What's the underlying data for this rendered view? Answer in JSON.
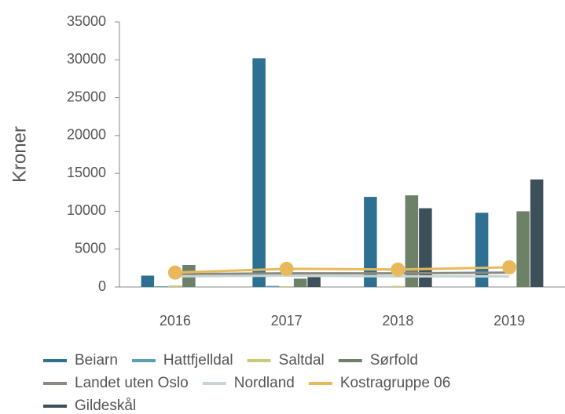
{
  "chart_data": {
    "type": "bar",
    "y_label": "Kroner",
    "categories": [
      "2016",
      "2017",
      "2018",
      "2019"
    ],
    "ylim": [
      0,
      35000
    ],
    "yticks": [
      0,
      5000,
      10000,
      15000,
      20000,
      25000,
      30000,
      35000
    ],
    "series": [
      {
        "name": "Beiarn",
        "type": "bar",
        "color": "#2e7091",
        "values": [
          1500,
          30200,
          11900,
          9800
        ]
      },
      {
        "name": "Hattfjelldal",
        "type": "bar",
        "color": "#5b9fb4",
        "values": [
          100,
          150,
          null,
          null
        ]
      },
      {
        "name": "Saltdal",
        "type": "bar",
        "color": "#c9c97c",
        "values": [
          200,
          100,
          150,
          null
        ]
      },
      {
        "name": "Sørfold",
        "type": "bar",
        "color": "#6d8068",
        "values": [
          2900,
          1100,
          12100,
          10000
        ]
      },
      {
        "name": "Landet uten Oslo",
        "type": "line",
        "color": "#8c8a80",
        "values": [
          1700,
          1800,
          1800,
          1900
        ]
      },
      {
        "name": "Nordland",
        "type": "line",
        "color": "#c6d4d4",
        "values": [
          1400,
          1500,
          1400,
          1400
        ]
      },
      {
        "name": "Kostragruppe 06",
        "type": "line",
        "color": "#e8b95c",
        "marker": true,
        "values": [
          1900,
          2400,
          2300,
          2600
        ]
      },
      {
        "name": "Gildeskål",
        "type": "bar",
        "color": "#3d4f58",
        "values": [
          null,
          1300,
          10400,
          14200
        ]
      }
    ]
  }
}
